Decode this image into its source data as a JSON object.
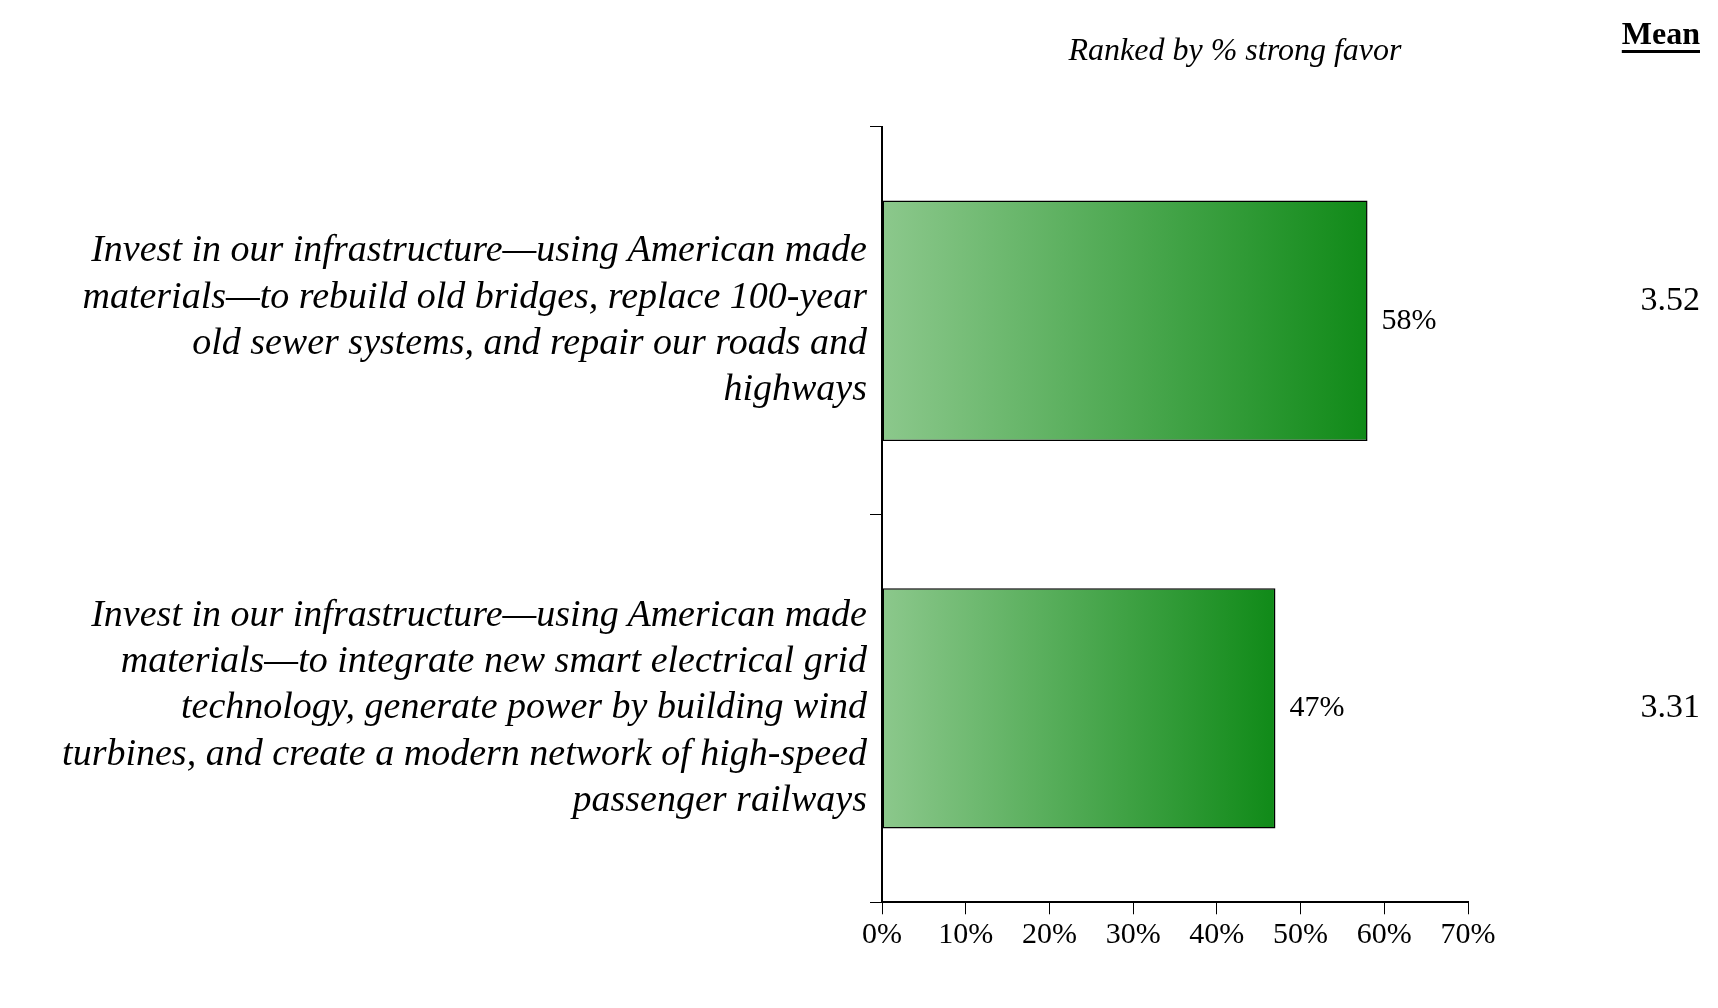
{
  "chart_data": {
    "type": "bar",
    "orientation": "horizontal",
    "subtitle": "Ranked by % strong favor",
    "categories": [
      "Invest in our infrastructure—using American made materials—to rebuild old bridges, replace 100-year old sewer systems, and repair our roads and highways",
      "Invest in our infrastructure—using American made materials—to integrate new smart electrical grid technology, generate power by building wind turbines, and create a modern network of high-speed passenger railways"
    ],
    "values": [
      58,
      47
    ],
    "color": "#108a18",
    "value_labels": [
      "58%",
      "47%"
    ],
    "xlim": [
      0,
      70
    ],
    "xticks": [
      {
        "value": 0,
        "label": "0%"
      },
      {
        "value": 10,
        "label": "10%"
      },
      {
        "value": 20,
        "label": "20%"
      },
      {
        "value": 30,
        "label": "30%"
      },
      {
        "value": 40,
        "label": "40%"
      },
      {
        "value": 50,
        "label": "50%"
      },
      {
        "value": 60,
        "label": "60%"
      },
      {
        "value": 70,
        "label": "70%"
      }
    ],
    "grid": false,
    "legend": false,
    "annotations": [
      "Mean",
      "3.52",
      "3.31"
    ]
  }
}
